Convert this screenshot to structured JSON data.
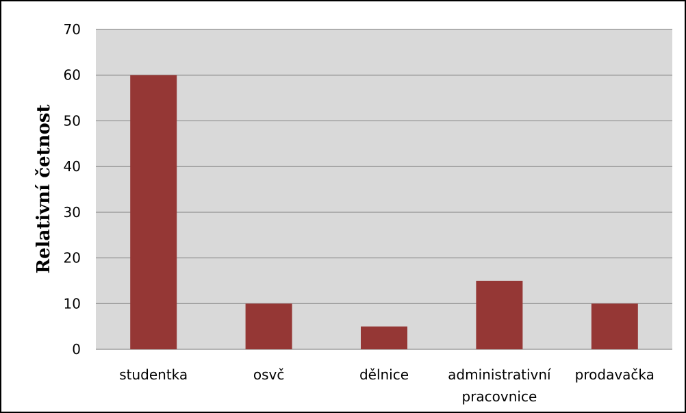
{
  "chart_data": {
    "type": "bar",
    "title": "",
    "xlabel": "",
    "ylabel": "Relativní četnost",
    "categories": [
      [
        "studentka"
      ],
      [
        "osvč"
      ],
      [
        "dělnice"
      ],
      [
        "administrativní",
        "pracovnice"
      ],
      [
        "prodavačka"
      ]
    ],
    "values": [
      60,
      10,
      5,
      15,
      10
    ],
    "ylim": [
      0,
      70
    ],
    "yticks": [
      0,
      10,
      20,
      30,
      40,
      50,
      60,
      70
    ],
    "grid": true,
    "legend": "none"
  },
  "colors": {
    "bar": "#953735",
    "plot_background": "#d9d9d9",
    "gridline": "#8c8c8c",
    "frame": "#000000"
  }
}
